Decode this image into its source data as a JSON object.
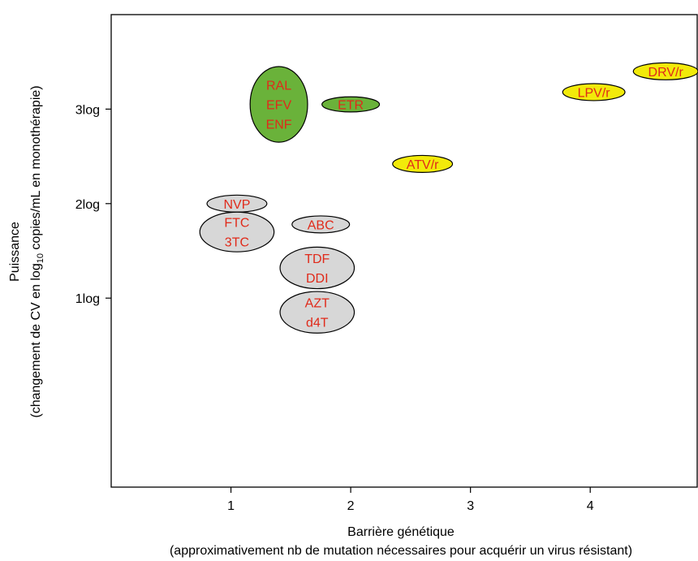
{
  "chart_data": {
    "type": "scatter",
    "title": "",
    "xlabel": "Barrière génétique",
    "xlabel_sub": "(approximativement nb de mutation nécessaires pour acquérir un virus résistant)",
    "ylabel": "Puissance",
    "ylabel_sub_parts": [
      "(changement de CV en log",
      "10",
      " copies/mL en monothérapie)"
    ],
    "xlim": [
      0,
      4.9
    ],
    "ylim": [
      -1.0,
      4.0
    ],
    "x_ticks": [
      {
        "value": 1,
        "label": "1"
      },
      {
        "value": 2,
        "label": "2"
      },
      {
        "value": 3,
        "label": "3"
      },
      {
        "value": 4,
        "label": "4"
      }
    ],
    "y_ticks": [
      {
        "value": 1,
        "label": "1log"
      },
      {
        "value": 2,
        "label": "2log"
      },
      {
        "value": 3,
        "label": "3log"
      }
    ],
    "grid": false,
    "colors": {
      "green": "#6ab23a",
      "yellow": "#f2ea0a",
      "gray": "#d7d7d7",
      "label": "#e02a1a",
      "outline": "#000000"
    },
    "points": [
      {
        "labels": [
          "RAL",
          "EFV",
          "ENF"
        ],
        "x": 1.4,
        "y": 3.05,
        "rx": 0.24,
        "ry": 0.4,
        "color": "green"
      },
      {
        "labels": [
          "ETR"
        ],
        "x": 2.0,
        "y": 3.05,
        "rx": 0.24,
        "ry": 0.08,
        "color": "green"
      },
      {
        "labels": [
          "DRV/r"
        ],
        "x": 4.63,
        "y": 3.4,
        "rx": 0.27,
        "ry": 0.09,
        "color": "yellow"
      },
      {
        "labels": [
          "LPV/r"
        ],
        "x": 4.03,
        "y": 3.18,
        "rx": 0.26,
        "ry": 0.09,
        "color": "yellow"
      },
      {
        "labels": [
          "ATV/r"
        ],
        "x": 2.6,
        "y": 2.42,
        "rx": 0.25,
        "ry": 0.09,
        "color": "yellow"
      },
      {
        "labels": [
          "NVP"
        ],
        "x": 1.05,
        "y": 2.0,
        "rx": 0.25,
        "ry": 0.09,
        "color": "gray"
      },
      {
        "labels": [
          "FTC",
          "3TC"
        ],
        "x": 1.05,
        "y": 1.7,
        "rx": 0.31,
        "ry": 0.21,
        "color": "gray"
      },
      {
        "labels": [
          "ABC"
        ],
        "x": 1.75,
        "y": 1.78,
        "rx": 0.24,
        "ry": 0.09,
        "color": "gray"
      },
      {
        "labels": [
          "TDF",
          "DDI"
        ],
        "x": 1.72,
        "y": 1.32,
        "rx": 0.31,
        "ry": 0.22,
        "color": "gray"
      },
      {
        "labels": [
          "AZT",
          "d4T"
        ],
        "x": 1.72,
        "y": 0.85,
        "rx": 0.31,
        "ry": 0.22,
        "color": "gray"
      }
    ]
  }
}
